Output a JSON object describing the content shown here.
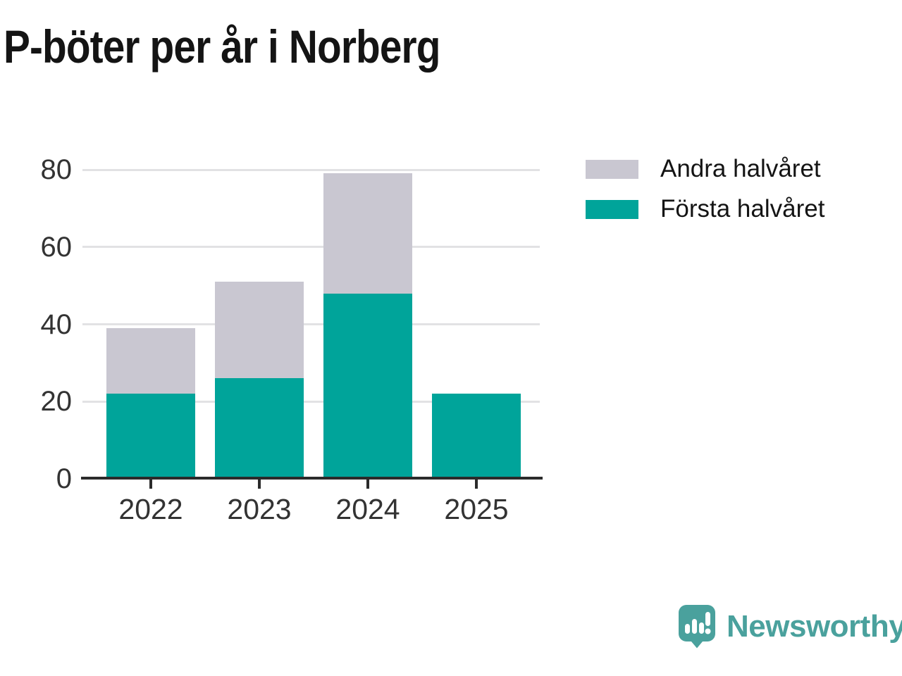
{
  "title": "P-böter per år i Norberg",
  "chart_data": {
    "type": "bar",
    "stacked": true,
    "title": "P-böter per år i Norberg",
    "categories": [
      "2022",
      "2023",
      "2024",
      "2025"
    ],
    "series": [
      {
        "name": "Första halvåret",
        "color": "#00a49a",
        "values": [
          22,
          26,
          48,
          22
        ]
      },
      {
        "name": "Andra halvåret",
        "color": "#c9c7d1",
        "values": [
          17,
          25,
          31,
          0
        ]
      }
    ],
    "totals": [
      39,
      51,
      79,
      22
    ],
    "xlabel": "",
    "ylabel": "",
    "ylim": [
      0,
      80
    ],
    "yticks": [
      0,
      20,
      40,
      60,
      80
    ],
    "grid": true,
    "legend_position": "top-right",
    "legend_order": [
      "Andra halvåret",
      "Första halvåret"
    ]
  },
  "legend": {
    "items": [
      {
        "label": "Andra halvåret",
        "color": "#c9c7d1"
      },
      {
        "label": "Första halvåret",
        "color": "#00a49a"
      }
    ]
  },
  "branding": {
    "logo_text": "Newsworthy",
    "logo_color": "#4aa19d",
    "logo_icon": "newsworthy-speech-bubble-bar-chart-icon"
  },
  "colors": {
    "first_half_teal": "#00a49a",
    "second_half_gray": "#c9c7d1",
    "gridline": "#e2e2e4",
    "axis": "#2b2b2b",
    "tick_label": "#333333",
    "title_text": "#141414"
  }
}
